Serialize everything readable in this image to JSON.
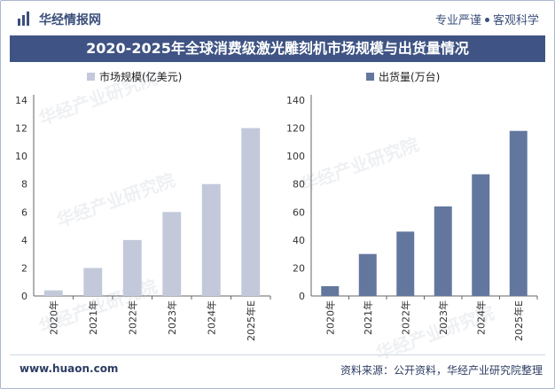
{
  "header": {
    "logo_text": "华经情报网",
    "slogan_left": "专业严谨",
    "slogan_right": "客观科学",
    "title": "2020-2025年全球消费级激光雕刻机市场规模与出货量情况"
  },
  "watermarks": {
    "text_cn": "华经产业研究院",
    "text_url": "www.huaon.com"
  },
  "footer": {
    "site": "www.huaon.com",
    "source": "资料来源：公开资料，华经产业研究院整理"
  },
  "colors": {
    "title_bg": "#3f5484",
    "series_market": "#c3c9da",
    "series_shipment": "#63779e",
    "text_dark": "#2d3d63"
  },
  "chart_data": [
    {
      "type": "bar",
      "categories": [
        "2020年",
        "2021年",
        "2022年",
        "2023年",
        "2024年",
        "2025年E"
      ],
      "series": [
        {
          "name": "市场规模(亿美元)",
          "values": [
            0.4,
            2.0,
            4.0,
            6.0,
            8.0,
            12.0
          ]
        }
      ],
      "ylim": [
        0,
        14
      ],
      "yticks": [
        0,
        2,
        4,
        6,
        8,
        10,
        12,
        14
      ],
      "legend_position": "top-left",
      "grid": false
    },
    {
      "type": "bar",
      "categories": [
        "2020年",
        "2021年",
        "2022年",
        "2023年",
        "2024年",
        "2025年E"
      ],
      "series": [
        {
          "name": "出货量(万台)",
          "values": [
            7,
            30,
            46,
            64,
            87,
            118
          ]
        }
      ],
      "ylim": [
        0,
        140
      ],
      "yticks": [
        0,
        20,
        40,
        60,
        80,
        100,
        120,
        140
      ],
      "legend_position": "top-left",
      "grid": false
    }
  ]
}
